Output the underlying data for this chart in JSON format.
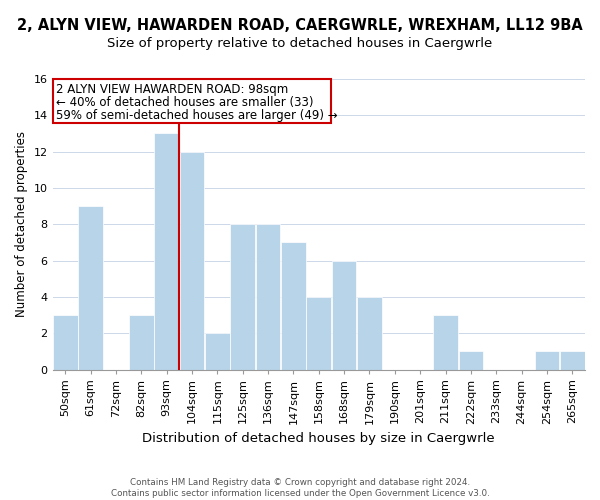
{
  "title": "2, ALYN VIEW, HAWARDEN ROAD, CAERGWRLE, WREXHAM, LL12 9BA",
  "subtitle": "Size of property relative to detached houses in Caergwrle",
  "xlabel": "Distribution of detached houses by size in Caergwrle",
  "ylabel": "Number of detached properties",
  "bin_labels": [
    "50sqm",
    "61sqm",
    "72sqm",
    "82sqm",
    "93sqm",
    "104sqm",
    "115sqm",
    "125sqm",
    "136sqm",
    "147sqm",
    "158sqm",
    "168sqm",
    "179sqm",
    "190sqm",
    "201sqm",
    "211sqm",
    "222sqm",
    "233sqm",
    "244sqm",
    "254sqm",
    "265sqm"
  ],
  "bar_heights": [
    3,
    9,
    0,
    3,
    13,
    12,
    2,
    8,
    8,
    7,
    4,
    6,
    4,
    0,
    0,
    3,
    1,
    0,
    0,
    1,
    1
  ],
  "bar_color": "#b8d4e8",
  "bar_edge_color": "#ffffff",
  "reference_line_x": 4.5,
  "reference_line_color": "#cc0000",
  "annotation_line1": "2 ALYN VIEW HAWARDEN ROAD: 98sqm",
  "annotation_line2": "← 40% of detached houses are smaller (33)",
  "annotation_line3": "59% of semi-detached houses are larger (49) →",
  "ylim": [
    0,
    16
  ],
  "yticks": [
    0,
    2,
    4,
    6,
    8,
    10,
    12,
    14,
    16
  ],
  "title_fontsize": 10.5,
  "subtitle_fontsize": 9.5,
  "xlabel_fontsize": 9.5,
  "ylabel_fontsize": 8.5,
  "tick_fontsize": 8,
  "annotation_fontsize": 8.5,
  "footer_text": "Contains HM Land Registry data © Crown copyright and database right 2024.\nContains public sector information licensed under the Open Government Licence v3.0.",
  "background_color": "#ffffff",
  "grid_color": "#ccd8e8"
}
